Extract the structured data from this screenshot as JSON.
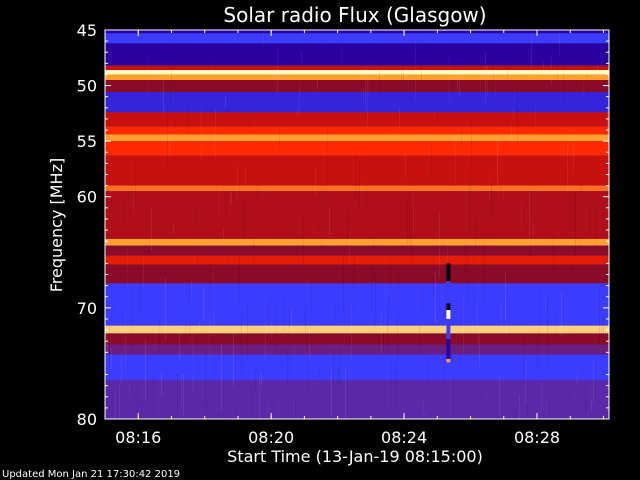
{
  "chart_data": {
    "type": "heatmap",
    "title": "Solar radio Flux (Glasgow)",
    "xlabel": "Start Time (13-Jan-19 08:15:00)",
    "ylabel": "Frequency [MHz]",
    "xlim": [
      "08:15:00",
      "08:30:10"
    ],
    "ylim": [
      45,
      80
    ],
    "y_inverted": true,
    "x_ticks": [
      "08:16",
      "08:20",
      "08:24",
      "08:28"
    ],
    "y_ticks": [
      45,
      50,
      55,
      60,
      70,
      80
    ],
    "colormap": [
      "#000000",
      "#2a00a0",
      "#3c3cff",
      "#8a0a2a",
      "#c81010",
      "#ff2a00",
      "#ffa030",
      "#ffffc0"
    ],
    "bands": [
      {
        "f0": 45.0,
        "f1": 45.3,
        "level": 1
      },
      {
        "f0": 45.3,
        "f1": 46.2,
        "level": 2
      },
      {
        "f0": 46.2,
        "f1": 48.2,
        "level": 1
      },
      {
        "f0": 48.2,
        "f1": 48.6,
        "level": 4
      },
      {
        "f0": 48.6,
        "f1": 49.0,
        "level": 7
      },
      {
        "f0": 49.0,
        "f1": 49.5,
        "level": 6
      },
      {
        "f0": 49.5,
        "f1": 50.6,
        "level": 3
      },
      {
        "f0": 50.6,
        "f1": 52.4,
        "level": 1.6
      },
      {
        "f0": 52.4,
        "f1": 53.7,
        "level": 4
      },
      {
        "f0": 53.7,
        "f1": 54.4,
        "level": 5
      },
      {
        "f0": 54.4,
        "f1": 55.0,
        "level": 6
      },
      {
        "f0": 55.0,
        "f1": 56.3,
        "level": 5
      },
      {
        "f0": 56.3,
        "f1": 59.0,
        "level": 4
      },
      {
        "f0": 59.0,
        "f1": 59.5,
        "level": 5.6
      },
      {
        "f0": 59.5,
        "f1": 63.8,
        "level": 3.6
      },
      {
        "f0": 63.8,
        "f1": 64.4,
        "level": 6
      },
      {
        "f0": 64.4,
        "f1": 65.3,
        "level": 3
      },
      {
        "f0": 65.3,
        "f1": 66.1,
        "level": 4.5
      },
      {
        "f0": 66.1,
        "f1": 67.8,
        "level": 3
      },
      {
        "f0": 67.8,
        "f1": 71.6,
        "level": 2
      },
      {
        "f0": 71.6,
        "f1": 72.3,
        "level": 6.5
      },
      {
        "f0": 72.3,
        "f1": 73.3,
        "level": 3
      },
      {
        "f0": 73.3,
        "f1": 74.2,
        "level": 2.6
      },
      {
        "f0": 74.2,
        "f1": 76.5,
        "level": 2
      },
      {
        "f0": 76.5,
        "f1": 80.0,
        "level": 2.4
      }
    ],
    "burst_column": {
      "time": "08:25:20",
      "segments": [
        {
          "f0": 66.0,
          "f1": 67.6,
          "level": 0
        },
        {
          "f0": 67.6,
          "f1": 69.6,
          "level": 2
        },
        {
          "f0": 69.6,
          "f1": 70.2,
          "level": 0
        },
        {
          "f0": 70.2,
          "f1": 71.0,
          "level": 7
        },
        {
          "f0": 71.0,
          "f1": 72.8,
          "level": 2
        },
        {
          "f0": 72.8,
          "f1": 74.6,
          "level": 1
        },
        {
          "f0": 74.6,
          "f1": 74.9,
          "level": 6
        }
      ]
    },
    "grid": false
  },
  "footer": "Updated Mon Jan 21 17:30:42 2019"
}
